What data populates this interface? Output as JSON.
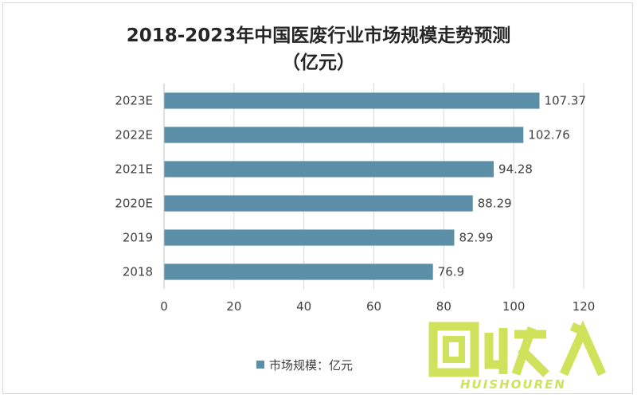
{
  "chart_data": {
    "type": "bar",
    "orientation": "horizontal",
    "title": "2018-2023年中国医废行业市场规模走势预测",
    "subtitle": "（亿元）",
    "categories": [
      "2018",
      "2019",
      "2020E",
      "2021E",
      "2022E",
      "2023E"
    ],
    "series": [
      {
        "name": "市场规模：亿元",
        "values": [
          76.9,
          82.99,
          88.29,
          94.28,
          102.76,
          107.37
        ]
      }
    ],
    "data_labels": [
      "76.9",
      "82.99",
      "88.29",
      "94.28",
      "102.76",
      "107.37"
    ],
    "xlim": [
      0,
      120
    ],
    "x_ticks": [
      0,
      20,
      40,
      60,
      80,
      100,
      120
    ],
    "grid": true,
    "legend_position": "bottom",
    "bar_color": "#5b8fa8"
  },
  "watermark": {
    "logo_text": "回收人",
    "url_text": "HUISHOUREN",
    "color": "#c9e04a"
  }
}
